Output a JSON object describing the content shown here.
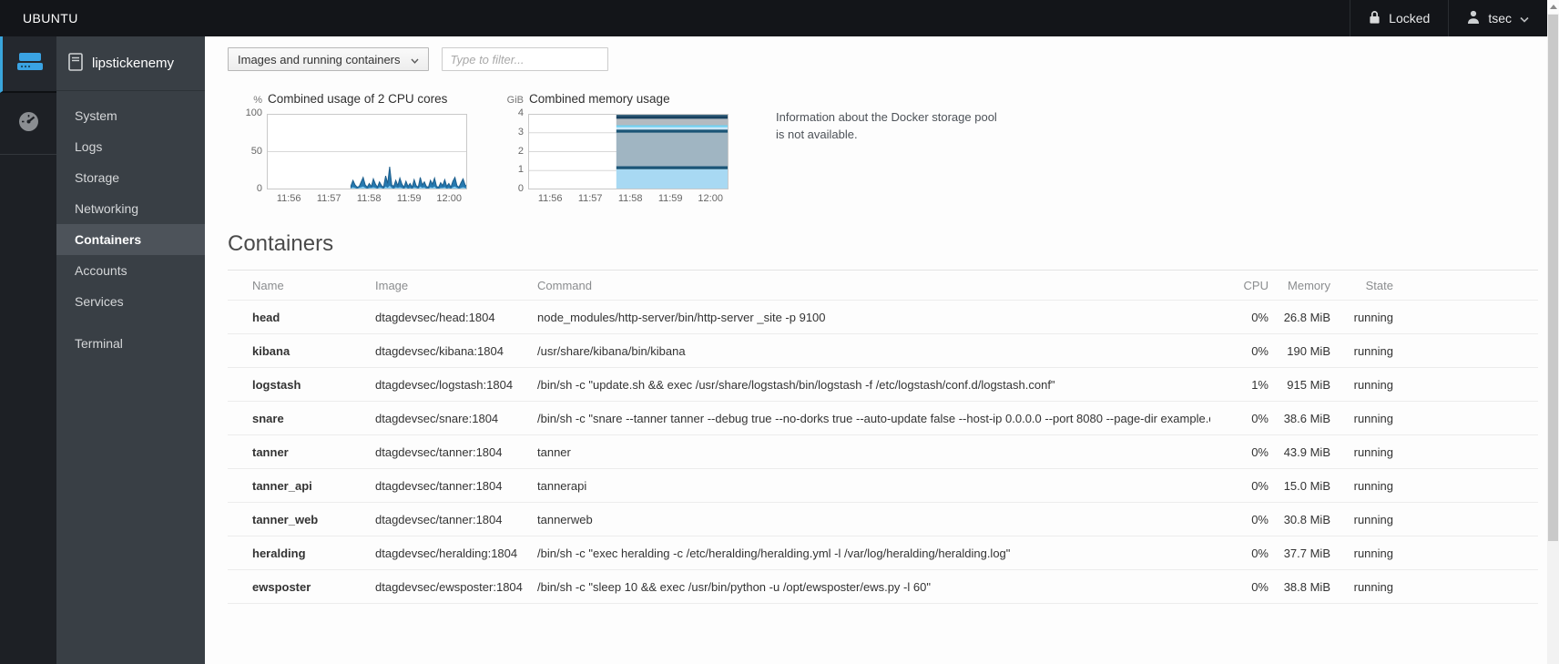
{
  "topbar": {
    "brand": "UBUNTU",
    "lock_icon": "lock-icon",
    "locked_label": "Locked",
    "user_icon": "user-icon",
    "user": "tsec",
    "user_chevron": "chevron-down-icon"
  },
  "sidebar": {
    "hostname": "lipstickenemy",
    "host_icon": "server-outline-icon",
    "machine_icon": "machine-drive-icon",
    "dashboard_icon": "dashboard-gauge-icon",
    "accent_color": "#39a5dc",
    "items": [
      {
        "label": "System"
      },
      {
        "label": "Logs"
      },
      {
        "label": "Storage"
      },
      {
        "label": "Networking"
      },
      {
        "label": "Containers"
      },
      {
        "label": "Accounts"
      },
      {
        "label": "Services"
      },
      {
        "label": "Terminal"
      }
    ],
    "active_index": 4
  },
  "toolbar": {
    "filter_select_value": "Images and running containers",
    "filter_placeholder": "Type to filter..."
  },
  "storage_note": {
    "line1": "Information about the Docker storage pool",
    "line2": "is not available."
  },
  "containers_section": {
    "title": "Containers",
    "columns": {
      "name": "Name",
      "image": "Image",
      "command": "Command",
      "cpu": "CPU",
      "memory": "Memory",
      "state": "State"
    },
    "rows": [
      {
        "name": "head",
        "image": "dtagdevsec/head:1804",
        "command": "node_modules/http-server/bin/http-server _site -p 9100",
        "cpu": "0%",
        "memory": "26.8 MiB",
        "state": "running"
      },
      {
        "name": "kibana",
        "image": "dtagdevsec/kibana:1804",
        "command": "/usr/share/kibana/bin/kibana",
        "cpu": "0%",
        "memory": "190 MiB",
        "state": "running"
      },
      {
        "name": "logstash",
        "image": "dtagdevsec/logstash:1804",
        "command": "/bin/sh -c \"update.sh && exec /usr/share/logstash/bin/logstash -f /etc/logstash/conf.d/logstash.conf\"",
        "cpu": "1%",
        "memory": "915 MiB",
        "state": "running"
      },
      {
        "name": "snare",
        "image": "dtagdevsec/snare:1804",
        "command": "/bin/sh -c \"snare --tanner tanner --debug true --no-dorks true --auto-update false --host-ip 0.0.0.0 --port 8080 --page-dir example.com\"",
        "cpu": "0%",
        "memory": "38.6 MiB",
        "state": "running"
      },
      {
        "name": "tanner",
        "image": "dtagdevsec/tanner:1804",
        "command": "tanner",
        "cpu": "0%",
        "memory": "43.9 MiB",
        "state": "running"
      },
      {
        "name": "tanner_api",
        "image": "dtagdevsec/tanner:1804",
        "command": "tannerapi",
        "cpu": "0%",
        "memory": "15.0 MiB",
        "state": "running"
      },
      {
        "name": "tanner_web",
        "image": "dtagdevsec/tanner:1804",
        "command": "tannerweb",
        "cpu": "0%",
        "memory": "30.8 MiB",
        "state": "running"
      },
      {
        "name": "heralding",
        "image": "dtagdevsec/heralding:1804",
        "command": "/bin/sh -c \"exec heralding -c /etc/heralding/heralding.yml -l /var/log/heralding/heralding.log\"",
        "cpu": "0%",
        "memory": "37.7 MiB",
        "state": "running"
      },
      {
        "name": "ewsposter",
        "image": "dtagdevsec/ewsposter:1804",
        "command": "/bin/sh -c \"sleep 10 && exec /usr/bin/python -u /opt/ewsposter/ews.py -l 60\"",
        "cpu": "0%",
        "memory": "38.8 MiB",
        "state": "running"
      }
    ]
  },
  "chart_data": [
    {
      "type": "area",
      "title": "Combined usage of 2 CPU cores",
      "unit": "%",
      "ylim": [
        0,
        100
      ],
      "yticks": [
        0,
        50,
        100
      ],
      "xticks": [
        "11:56",
        "11:57",
        "11:58",
        "11:59",
        "12:00"
      ],
      "grid": true,
      "series": [
        {
          "name": "cpu-total",
          "color": "#2678ae",
          "stroke": "#1d5e8c",
          "start_fraction": 0.42,
          "values": [
            5,
            12,
            6,
            3,
            4,
            10,
            16,
            6,
            3,
            8,
            4,
            14,
            7,
            3,
            10,
            5,
            3,
            18,
            8,
            30,
            6,
            4,
            12,
            5,
            15,
            7,
            3,
            11,
            4,
            8,
            3,
            13,
            5,
            3,
            16,
            6,
            10,
            4,
            3,
            12,
            7,
            15,
            4,
            3,
            9,
            5,
            13,
            4,
            8,
            3,
            11,
            16,
            5,
            3,
            9,
            14,
            6,
            4
          ]
        },
        {
          "name": "cpu-io",
          "color": "#85cdf3",
          "stroke": "none",
          "start_fraction": 0.42,
          "values": [
            2,
            3,
            2,
            1,
            2,
            3,
            4,
            2,
            1,
            2,
            2,
            3,
            2,
            1,
            3,
            2,
            1,
            4,
            2,
            5,
            2,
            1,
            3,
            2,
            3,
            2,
            1,
            3,
            1,
            2,
            1,
            3,
            2,
            1,
            4,
            2,
            3,
            1,
            1,
            3,
            2,
            4,
            1,
            1,
            2,
            2,
            3,
            1,
            2,
            1,
            3,
            4,
            2,
            1,
            2,
            3,
            2,
            1
          ]
        }
      ]
    },
    {
      "type": "stacked-area",
      "title": "Combined memory usage",
      "unit": "GiB",
      "ylim": [
        0,
        4
      ],
      "yticks": [
        0,
        1,
        2,
        3,
        4
      ],
      "xticks": [
        "11:56",
        "11:57",
        "11:58",
        "11:59",
        "12:00"
      ],
      "grid": true,
      "start_fraction": 0.44,
      "layers": [
        {
          "name": "mem-layer-1",
          "color": "#a8d9f3",
          "from": 0,
          "to": 1.07
        },
        {
          "name": "mem-layer-2",
          "color": "#1b5577",
          "from": 1.07,
          "to": 1.24
        },
        {
          "name": "mem-layer-3",
          "color": "#a0b5c2",
          "from": 1.24,
          "to": 3.0
        },
        {
          "name": "mem-layer-4",
          "color": "#1b5577",
          "from": 3.0,
          "to": 3.17
        },
        {
          "name": "mem-layer-5",
          "color": "#c9e7f7",
          "from": 3.17,
          "to": 3.3
        },
        {
          "name": "mem-layer-6",
          "color": "#6fd1f2",
          "from": 3.3,
          "to": 3.4
        },
        {
          "name": "mem-layer-7",
          "color": "#b3bac0",
          "from": 3.4,
          "to": 3.74
        },
        {
          "name": "mem-layer-8",
          "color": "#16405f",
          "from": 3.74,
          "to": 3.9
        },
        {
          "name": "mem-layer-9",
          "color": "#3a6580",
          "from": 3.9,
          "to": 3.97
        }
      ]
    }
  ]
}
